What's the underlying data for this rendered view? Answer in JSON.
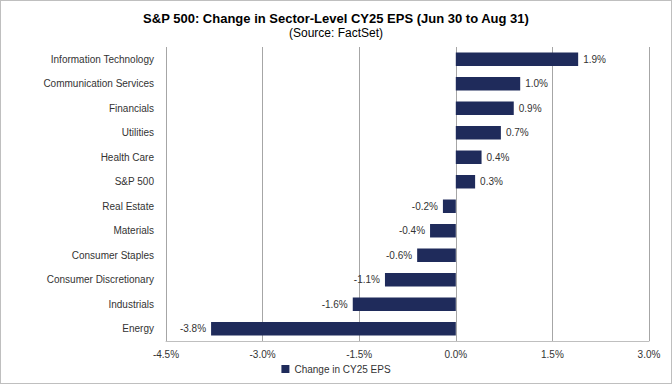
{
  "chart_data": {
    "type": "bar",
    "title": "S&P 500: Change in Sector-Level CY25 EPS (Jun 30 to Aug 31)",
    "subtitle": "(Source: FactSet)",
    "orientation": "horizontal",
    "categories": [
      "Information Technology",
      "Communication Services",
      "Financials",
      "Utilities",
      "Health Care",
      "S&P 500",
      "Real Estate",
      "Materials",
      "Consumer Staples",
      "Consumer Discretionary",
      "Industrials",
      "Energy"
    ],
    "series": [
      {
        "name": "Change in CY25 EPS",
        "color": "#1f2b5b",
        "values": [
          1.9,
          1.0,
          0.9,
          0.7,
          0.4,
          0.3,
          -0.2,
          -0.4,
          -0.6,
          -1.1,
          -1.6,
          -3.8
        ],
        "value_labels": [
          "1.9%",
          "1.0%",
          "0.9%",
          "0.7%",
          "0.4%",
          "0.3%",
          "-0.2%",
          "-0.4%",
          "-0.6%",
          "-1.1%",
          "-1.6%",
          "-3.8%"
        ]
      }
    ],
    "xlim": [
      -4.5,
      3.0
    ],
    "xticks": [
      {
        "value": -4.5,
        "label": "-4.5%"
      },
      {
        "value": -3.0,
        "label": "-3.0%"
      },
      {
        "value": -1.5,
        "label": "-1.5%"
      },
      {
        "value": 0,
        "label": "0.0%"
      },
      {
        "value": 1.5,
        "label": "1.5%"
      },
      {
        "value": 3.0,
        "label": "3.0%"
      }
    ],
    "grid": true,
    "legend": "bottom",
    "data_labels": true
  }
}
